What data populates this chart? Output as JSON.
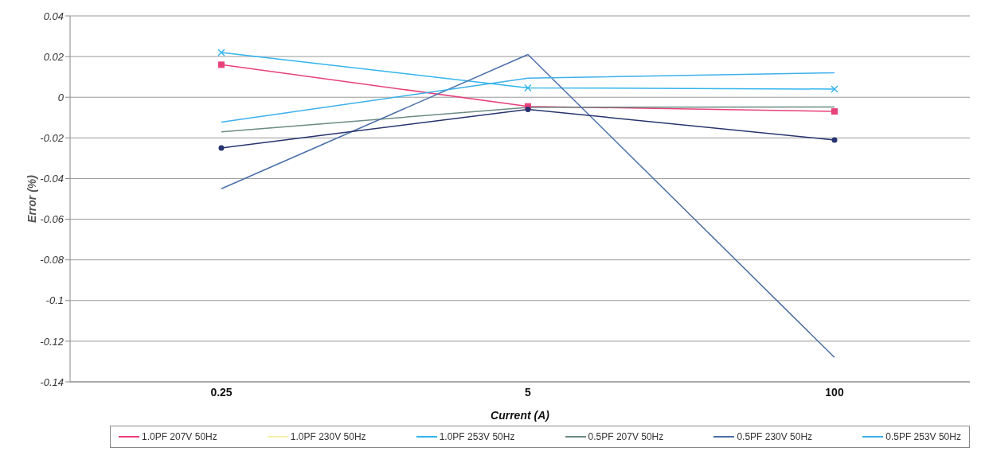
{
  "chart_data": {
    "type": "line",
    "xlabel": "Current (A)",
    "ylabel": "Error (%)",
    "categories": [
      "0.25",
      "5",
      "100"
    ],
    "series": [
      {
        "name": "1.0PF 207V 50Hz",
        "color": "#e8417a",
        "marker": "square",
        "values": [
          0.016,
          -0.0045,
          -0.007
        ]
      },
      {
        "name": "1.0PF 230V 50Hz",
        "color": "#f3f0a8",
        "marker": "none",
        "values": [
          null,
          null,
          null
        ]
      },
      {
        "name": "1.0PF 253V 50Hz",
        "color": "#33b5ec",
        "marker": "cross",
        "values": [
          0.022,
          0.0046,
          0.004
        ]
      },
      {
        "name": "0.5PF 207V 50Hz",
        "color": "#6b8a84",
        "marker": "none",
        "values": [
          -0.017,
          -0.005,
          -0.0048
        ]
      },
      {
        "name": "0.5PF 230V 50Hz",
        "color": "#4a6fa8",
        "marker": "none",
        "values": [
          -0.045,
          0.021,
          -0.128
        ]
      },
      {
        "name": "0.5PF 253V 50Hz",
        "color": "#3cb0ea",
        "marker": "none",
        "values": [
          -0.0122,
          0.0094,
          0.012
        ]
      },
      {
        "color": "#27346e",
        "marker": "circle",
        "values": [
          -0.025,
          -0.006,
          -0.021
        ]
      }
    ],
    "ylim": [
      -0.14,
      0.04
    ],
    "yticks": [
      -0.14,
      -0.12,
      -0.1,
      -0.08,
      -0.06,
      -0.04,
      -0.02,
      0,
      0.02,
      0.04
    ],
    "grid": "y",
    "legend": "bottom"
  }
}
